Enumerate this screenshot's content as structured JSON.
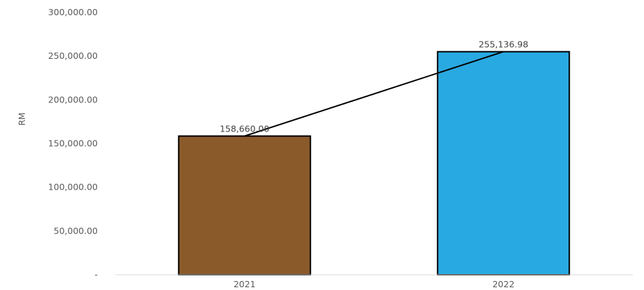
{
  "chart_data": {
    "type": "bar",
    "categories": [
      "2021",
      "2022"
    ],
    "values": [
      158660.0,
      255136.98
    ],
    "data_labels": [
      "158,660.00",
      "255,136.98"
    ],
    "bar_colors": [
      "#8B5A2B",
      "#29A9E1"
    ],
    "ylabel": "RM",
    "ylim": [
      0,
      300000
    ],
    "y_ticks": [
      {
        "value": 300000,
        "label": "300,000.00"
      },
      {
        "value": 250000,
        "label": "250,000.00"
      },
      {
        "value": 200000,
        "label": "200,000.00"
      },
      {
        "value": 150000,
        "label": "150,000.00"
      },
      {
        "value": 100000,
        "label": "100,000.00"
      },
      {
        "value": 50000,
        "label": "50,000.00"
      },
      {
        "value": 0,
        "label": "-"
      }
    ],
    "trend_line": true,
    "grid": false,
    "legend": "none"
  }
}
